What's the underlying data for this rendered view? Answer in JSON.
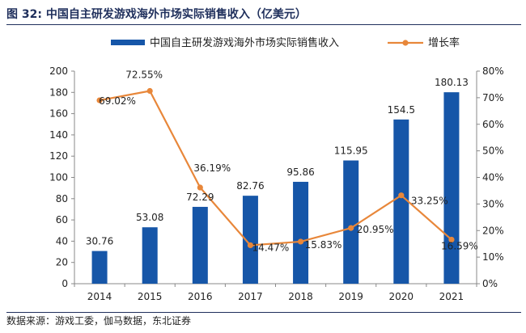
{
  "figure": {
    "title": "图 32: 中国自主研发游戏海外市场实际销售收入（亿美元）",
    "source": "数据来源：游戏工委，伽马数据，东北证券"
  },
  "colors": {
    "bar": "#1656a8",
    "line": "#e8873a",
    "axis": "#888888",
    "text": "#222222"
  },
  "chart_data": {
    "type": "bar",
    "categories": [
      "2014",
      "2015",
      "2016",
      "2017",
      "2018",
      "2019",
      "2020",
      "2021"
    ],
    "series": [
      {
        "name": "中国自主研发游戏海外市场实际销售收入",
        "type": "bar",
        "axis": "left",
        "values": [
          30.76,
          53.08,
          72.29,
          82.76,
          95.86,
          115.95,
          154.5,
          180.13
        ],
        "labels": [
          "30.76",
          "53.08",
          "72.29",
          "82.76",
          "95.86",
          "115.95",
          "154.5",
          "180.13"
        ]
      },
      {
        "name": "增长率",
        "type": "line",
        "axis": "right",
        "values": [
          69.02,
          72.55,
          36.19,
          14.47,
          15.83,
          20.95,
          33.25,
          16.59
        ],
        "labels": [
          "69.02%",
          "72.55%",
          "36.19%",
          "14.47%",
          "15.83%",
          "20.95%",
          "33.25%",
          "16.59%"
        ]
      }
    ],
    "ylim_left": [
      0,
      200
    ],
    "yticks_left": [
      "0",
      "20",
      "40",
      "60",
      "80",
      "100",
      "120",
      "140",
      "160",
      "180",
      "200"
    ],
    "ylim_right": [
      0,
      80
    ],
    "yticks_right": [
      "0%",
      "10%",
      "20%",
      "30%",
      "40%",
      "50%",
      "60%",
      "70%",
      "80%"
    ],
    "grid": false,
    "legend_position": "top-center"
  }
}
